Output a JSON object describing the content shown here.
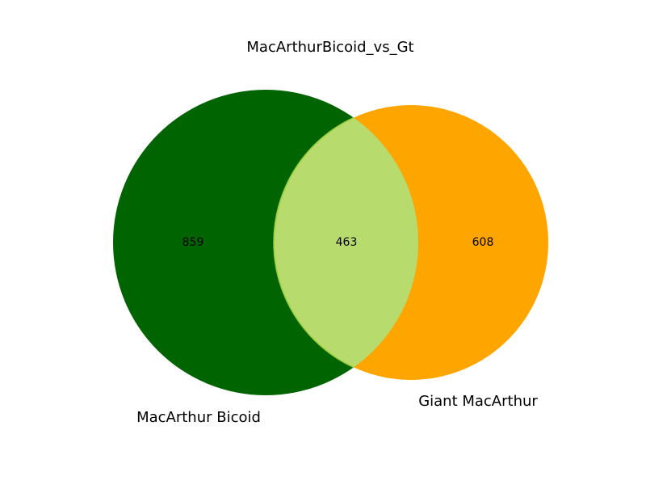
{
  "title": "MacArthurBicoid_vs_Gt",
  "sets": [
    {
      "name": "MacArthur Bicoid",
      "only_count": "859",
      "color": "#006400"
    },
    {
      "name": "Giant MacArthur",
      "only_count": "608",
      "color": "#FFA500"
    }
  ],
  "intersection": {
    "count": "463",
    "color": "#B8DB6E",
    "edge_color": "#9ACD32"
  }
}
